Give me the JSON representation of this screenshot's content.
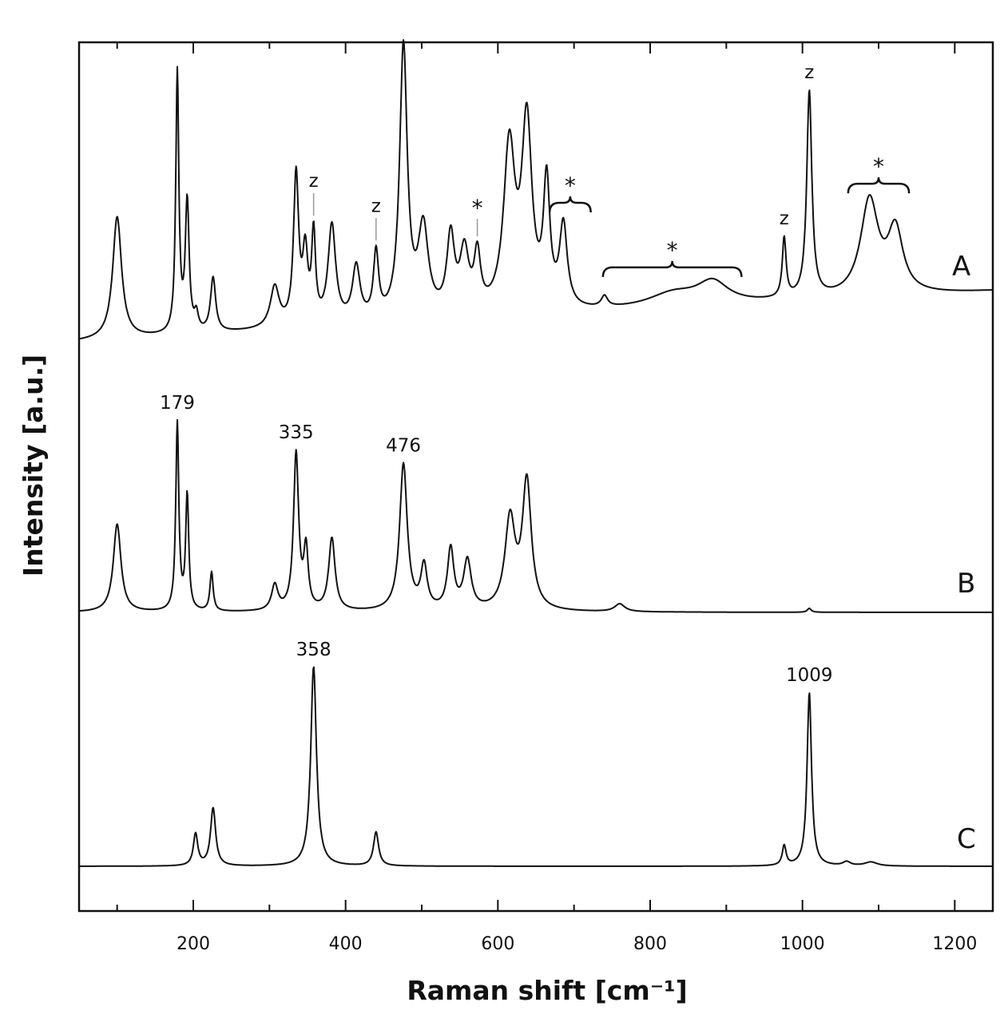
{
  "chart_data": {
    "type": "line",
    "title": "",
    "xlabel": "Raman shift [cm⁻¹]",
    "ylabel": "Intensity [a.u.]",
    "xlim": [
      50,
      1250
    ],
    "x_ticks": [
      200,
      400,
      600,
      800,
      1000,
      1200
    ],
    "x_ticks_minor": [
      100,
      300,
      500,
      700,
      900,
      1100
    ],
    "grid": false,
    "legend": "none",
    "y_scale": "arbitrary units, spectra vertically offset",
    "series": [
      {
        "name": "A",
        "peaks": [
          {
            "x": 100,
            "h": 0.45,
            "w": 7
          },
          {
            "x": 179,
            "h": 0.96,
            "w": 2.4
          },
          {
            "x": 192,
            "h": 0.48,
            "w": 3
          },
          {
            "x": 204,
            "h": 0.06,
            "w": 3
          },
          {
            "x": 226,
            "h": 0.2,
            "w": 4
          },
          {
            "x": 307,
            "h": 0.15,
            "w": 7
          },
          {
            "x": 335,
            "h": 0.55,
            "w": 4
          },
          {
            "x": 347,
            "h": 0.25,
            "w": 4
          },
          {
            "x": 358,
            "h": 0.32,
            "w": 3
          },
          {
            "x": 382,
            "h": 0.36,
            "w": 6
          },
          {
            "x": 414,
            "h": 0.2,
            "w": 6
          },
          {
            "x": 440,
            "h": 0.24,
            "w": 4
          },
          {
            "x": 476,
            "h": 1.0,
            "w": 6
          },
          {
            "x": 502,
            "h": 0.32,
            "w": 8
          },
          {
            "x": 538,
            "h": 0.28,
            "w": 6
          },
          {
            "x": 556,
            "h": 0.22,
            "w": 7
          },
          {
            "x": 573,
            "h": 0.2,
            "w": 5
          },
          {
            "x": 615,
            "h": 0.6,
            "w": 9
          },
          {
            "x": 638,
            "h": 0.68,
            "w": 8
          },
          {
            "x": 664,
            "h": 0.45,
            "w": 5
          },
          {
            "x": 686,
            "h": 0.3,
            "w": 6
          },
          {
            "x": 740,
            "h": 0.04,
            "w": 5
          },
          {
            "x": 830,
            "h": 0.05,
            "w": 40
          },
          {
            "x": 882,
            "h": 0.08,
            "w": 25
          },
          {
            "x": 976,
            "h": 0.22,
            "w": 3
          },
          {
            "x": 1009,
            "h": 0.76,
            "w": 4
          },
          {
            "x": 1088,
            "h": 0.35,
            "w": 14
          },
          {
            "x": 1122,
            "h": 0.23,
            "w": 12
          }
        ]
      },
      {
        "name": "B",
        "peaks": [
          {
            "x": 100,
            "h": 0.45,
            "w": 6
          },
          {
            "x": 179,
            "h": 0.96,
            "w": 2.4
          },
          {
            "x": 192,
            "h": 0.59,
            "w": 2.4
          },
          {
            "x": 224,
            "h": 0.2,
            "w": 2.5
          },
          {
            "x": 307,
            "h": 0.13,
            "w": 5
          },
          {
            "x": 335,
            "h": 0.8,
            "w": 4
          },
          {
            "x": 348,
            "h": 0.3,
            "w": 3.5
          },
          {
            "x": 382,
            "h": 0.37,
            "w": 5
          },
          {
            "x": 476,
            "h": 0.75,
            "w": 6
          },
          {
            "x": 503,
            "h": 0.22,
            "w": 5
          },
          {
            "x": 538,
            "h": 0.31,
            "w": 5
          },
          {
            "x": 560,
            "h": 0.25,
            "w": 6
          },
          {
            "x": 616,
            "h": 0.46,
            "w": 8
          },
          {
            "x": 638,
            "h": 0.65,
            "w": 7
          },
          {
            "x": 760,
            "h": 0.04,
            "w": 8
          },
          {
            "x": 1009,
            "h": 0.02,
            "w": 3
          }
        ]
      },
      {
        "name": "C",
        "peaks": [
          {
            "x": 203,
            "h": 0.16,
            "w": 3.5
          },
          {
            "x": 226,
            "h": 0.29,
            "w": 4
          },
          {
            "x": 358,
            "h": 1.0,
            "w": 4.5
          },
          {
            "x": 440,
            "h": 0.17,
            "w": 4
          },
          {
            "x": 976,
            "h": 0.1,
            "w": 3
          },
          {
            "x": 1009,
            "h": 0.87,
            "w": 3.5
          },
          {
            "x": 1058,
            "h": 0.02,
            "w": 6
          },
          {
            "x": 1090,
            "h": 0.02,
            "w": 10
          }
        ]
      }
    ],
    "annotations": {
      "peak_labels": [
        {
          "text": "179",
          "series": "B",
          "x": 179
        },
        {
          "text": "335",
          "series": "B",
          "x": 335
        },
        {
          "text": "476",
          "series": "B",
          "x": 476
        },
        {
          "text": "358",
          "series": "C",
          "x": 358
        },
        {
          "text": "1009",
          "series": "C",
          "x": 1009
        }
      ],
      "z_marks": [
        {
          "text": "z",
          "x": 358,
          "leader": true
        },
        {
          "text": "z",
          "x": 440,
          "leader": true
        },
        {
          "text": "z",
          "x": 976,
          "leader": false
        },
        {
          "text": "z",
          "x": 1009,
          "leader": false
        }
      ],
      "asterisk_marks": [
        {
          "text": "*",
          "x": 573,
          "leader": true
        },
        {
          "text": "*",
          "range": [
            668,
            722
          ]
        },
        {
          "text": "*",
          "range": [
            738,
            920
          ]
        },
        {
          "text": "*",
          "range": [
            1060,
            1140
          ]
        }
      ]
    }
  }
}
